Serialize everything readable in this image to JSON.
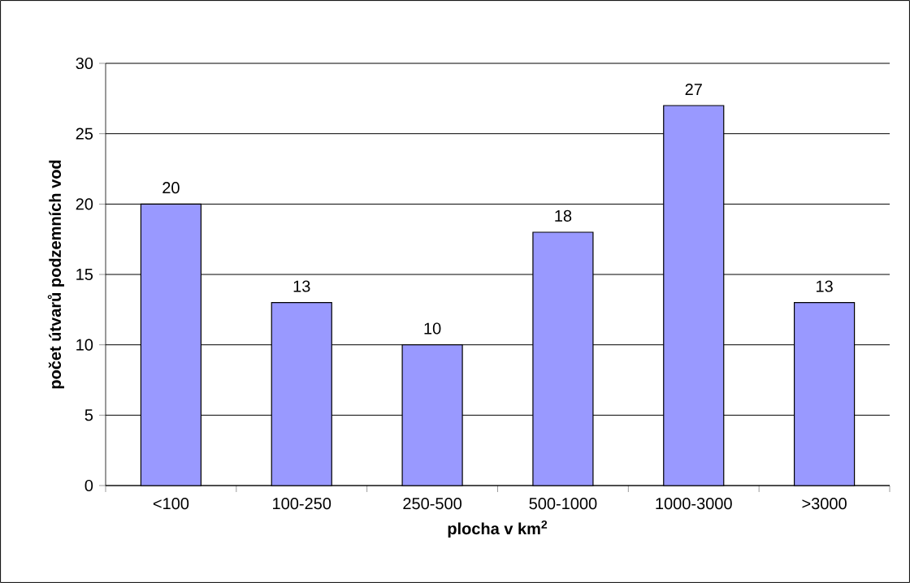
{
  "chart_data": {
    "type": "bar",
    "xlabel": "plocha v km$^{2}$",
    "ylabel": "počet útvarů podzemních vod",
    "categories": [
      "<100",
      "100-250",
      "250-500",
      "500-1000",
      "1000-3000",
      ">3000"
    ],
    "values": [
      20,
      13,
      10,
      18,
      27,
      13
    ],
    "color": "#9999ff",
    "ylim": [
      0,
      30
    ],
    "yticks": [
      0,
      5,
      10,
      15,
      20,
      25,
      30
    ],
    "grid": "y",
    "data_labels": true
  }
}
